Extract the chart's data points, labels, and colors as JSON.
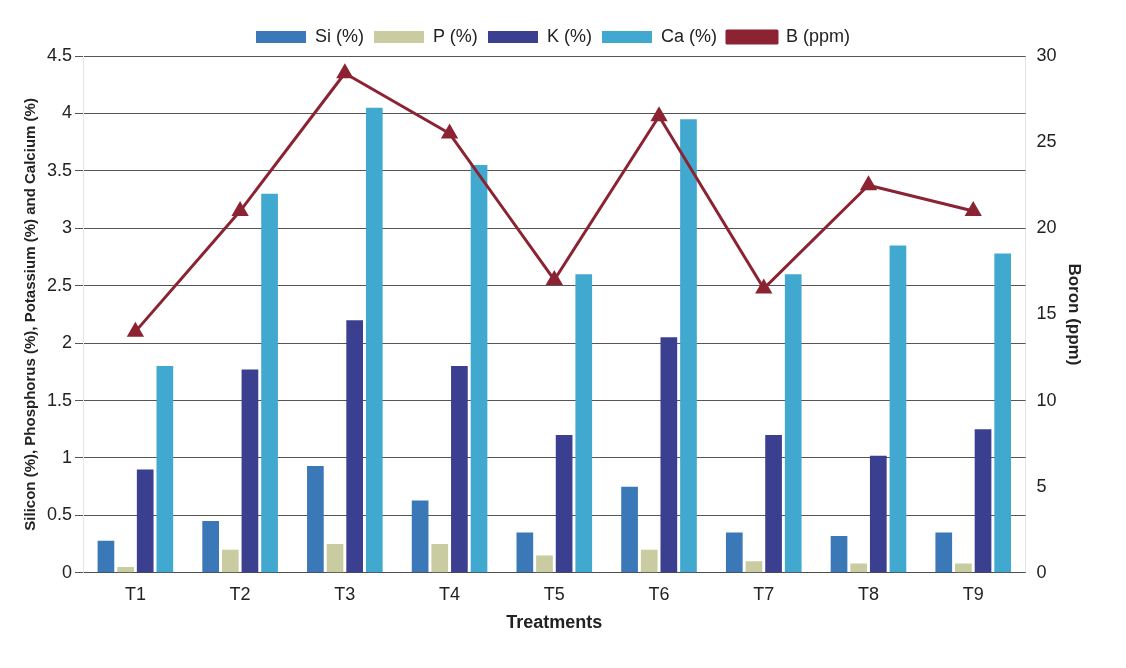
{
  "chart_data": {
    "type": "bar",
    "xlabel": "Treatments",
    "ylabel": "Silicon (%), Phosphorus (%), Potassium (%) and Calcium (%)",
    "y2label": "Boron (ppm)",
    "categories": [
      "T1",
      "T2",
      "T3",
      "T4",
      "T5",
      "T6",
      "T7",
      "T8",
      "T9"
    ],
    "series": [
      {
        "name": "Si (%)",
        "color": "#3a78b8",
        "values": [
          0.28,
          0.45,
          0.93,
          0.63,
          0.35,
          0.75,
          0.35,
          0.32,
          0.35
        ]
      },
      {
        "name": "P (%)",
        "color": "#c8cca0",
        "values": [
          0.05,
          0.2,
          0.25,
          0.25,
          0.15,
          0.2,
          0.1,
          0.08,
          0.08
        ]
      },
      {
        "name": "K (%)",
        "color": "#3b3f8f",
        "values": [
          0.9,
          1.77,
          2.2,
          1.8,
          1.2,
          2.05,
          1.2,
          1.02,
          1.25
        ]
      },
      {
        "name": "Ca (%)",
        "color": "#41a9d0",
        "values": [
          1.8,
          3.3,
          4.05,
          3.55,
          2.6,
          3.95,
          2.6,
          2.85,
          2.78
        ]
      },
      {
        "name": "B (ppm)",
        "type": "line",
        "axis": "y2",
        "color": "#8b2332",
        "values": [
          14,
          21,
          29,
          25.5,
          17,
          26.5,
          16.5,
          22.5,
          21
        ]
      }
    ],
    "ylim": [
      0,
      4.5
    ],
    "yticks": [
      0,
      0.5,
      {
        "value": 1,
        "label": "1"
      },
      1.5,
      {
        "value": 2,
        "label": "2"
      },
      2.5,
      {
        "value": 3,
        "label": "3"
      },
      3.5,
      {
        "value": 4,
        "label": "4"
      },
      4.5
    ],
    "y2lim": [
      0,
      30
    ],
    "y2ticks": [
      0,
      5,
      10,
      15,
      20,
      25,
      30
    ],
    "grid": "y",
    "legend": "top",
    "marker": "triangle"
  }
}
